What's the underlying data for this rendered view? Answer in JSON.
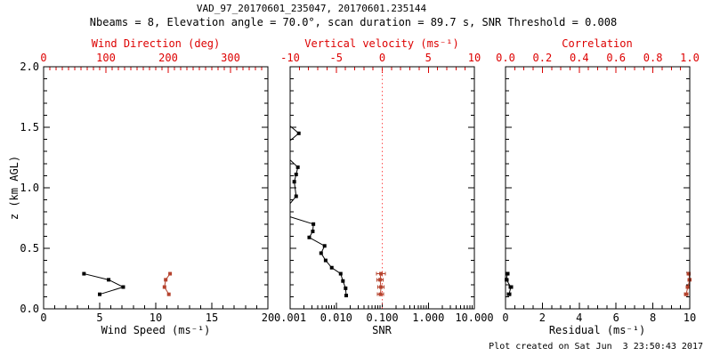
{
  "header": {
    "title": "VAD_97_20170601_235047, 20170601.235144",
    "subtitle": "Nbeams = 8, Elevation angle = 70.0°, scan duration = 89.7 s, SNR Threshold = 0.008"
  },
  "footer": {
    "created": "Plot created on Sat Jun  3 23:50:43 2017"
  },
  "colors": {
    "black": "#000000",
    "axis_red": "#dd0000",
    "data_red": "#b5432e",
    "refline": "#ff5050",
    "background": "#ffffff"
  },
  "chart_data": {
    "type": "line",
    "title": "VAD_97_20170601_235047, 20170601.235144",
    "subtitle": "Nbeams = 8, Elevation angle = 70.0°, scan duration = 89.7 s, SNR Threshold = 0.008",
    "ylabel": "z (km AGL)",
    "grid": false,
    "legend": "none",
    "marker_style": "filled-square",
    "y_axis": {
      "range": [
        0,
        2
      ],
      "major": [
        0,
        0.5,
        1,
        1.5,
        2
      ],
      "labels": [
        "0.0",
        "0.5",
        "1.0",
        "1.5",
        "2.0"
      ],
      "minor_step": 0.1
    },
    "panels": [
      {
        "name": "wind",
        "bottom_axis": {
          "label": "Wind Speed (ms⁻¹)",
          "range": [
            0,
            20
          ],
          "major": [
            0,
            5,
            10,
            15,
            20
          ],
          "labels": [
            "0",
            "5",
            "10",
            "15",
            "20"
          ],
          "minor_step": 1
        },
        "top_axis": {
          "label": "Wind Direction (deg)",
          "range": [
            0,
            360
          ],
          "major": [
            0,
            100,
            200,
            300
          ],
          "labels": [
            "0",
            "100",
            "200",
            "300"
          ],
          "minor_step": 10
        },
        "series": [
          {
            "name": "wind-speed",
            "axis": "bottom",
            "color": "#000000",
            "z": [
              0.12,
              0.18,
              0.24,
              0.29
            ],
            "v": [
              5.0,
              7.1,
              5.8,
              3.6
            ]
          },
          {
            "name": "wind-direction",
            "axis": "top",
            "color": "#b5432e",
            "z": [
              0.12,
              0.18,
              0.24,
              0.29
            ],
            "v": [
              201,
              194,
              196,
              203
            ]
          }
        ]
      },
      {
        "name": "snr",
        "bottom_axis": {
          "label": "SNR",
          "range": [
            0.001,
            10
          ],
          "log": true,
          "major": [
            0.001,
            0.01,
            0.1,
            1,
            10
          ],
          "labels": [
            "0.001",
            "0.010",
            "0.100",
            "1.000",
            "10.000"
          ]
        },
        "top_axis": {
          "label": "Vertical velocity (ms⁻¹)",
          "range": [
            -10,
            10
          ],
          "major": [
            -10,
            -5,
            0,
            5,
            10
          ],
          "labels": [
            "-10",
            "-5",
            "0",
            "5",
            "10"
          ],
          "minor_step": 1
        },
        "ref_line": {
          "axis": "top",
          "value": 0,
          "style": "dotted"
        },
        "series": [
          {
            "name": "snr-profile",
            "axis": "bottom",
            "color": "#000000",
            "z": [
              0.11,
              0.17,
              0.23,
              0.29,
              0.34,
              0.4,
              0.46,
              0.52,
              0.59,
              0.64,
              0.7,
              0.76,
              0.87,
              0.93,
              1.05,
              1.11,
              1.17,
              1.23,
              1.39,
              1.45,
              1.51
            ],
            "v": [
              0.0165,
              0.016,
              0.014,
              0.0125,
              0.008,
              0.0059,
              0.0047,
              0.0056,
              0.0026,
              0.0031,
              0.0032,
              0.0005,
              0.0005,
              0.00135,
              0.00123,
              0.00135,
              0.00147,
              0.0006,
              0.0006,
              0.00154,
              0.0005
            ],
            "m": [
              1,
              1,
              1,
              1,
              1,
              1,
              1,
              1,
              1,
              1,
              1,
              0,
              0,
              1,
              1,
              1,
              1,
              0,
              0,
              1,
              0
            ]
          },
          {
            "name": "vertical-velocity",
            "axis": "top",
            "color": "#b5432e",
            "z": [
              0.12,
              0.18,
              0.24,
              0.29
            ],
            "v": [
              -0.19,
              -0.14,
              -0.24,
              -0.14
            ],
            "xerr": [
              0.35,
              0.35,
              0.35,
              0.5
            ]
          }
        ]
      },
      {
        "name": "residual",
        "bottom_axis": {
          "label": "Residual (ms⁻¹)",
          "range": [
            0,
            10
          ],
          "major": [
            0,
            2,
            4,
            6,
            8,
            10
          ],
          "labels": [
            "0",
            "2",
            "4",
            "6",
            "8",
            "10"
          ],
          "minor_step": 0.5
        },
        "top_axis": {
          "label": "Correlation",
          "range": [
            0,
            1
          ],
          "major": [
            0,
            0.2,
            0.4,
            0.6,
            0.8,
            1.0
          ],
          "labels": [
            "0.0",
            "0.2",
            "0.4",
            "0.6",
            "0.8",
            "1.0"
          ],
          "minor_step": 0.05
        },
        "series": [
          {
            "name": "residual",
            "axis": "bottom",
            "color": "#000000",
            "z": [
              0.12,
              0.18,
              0.24,
              0.29
            ],
            "v": [
              0.19,
              0.29,
              0.05,
              0.1
            ],
            "xerr": [
              0.1,
              0.1,
              0.1,
              0.1
            ]
          },
          {
            "name": "correlation",
            "axis": "top",
            "color": "#b5432e",
            "z": [
              0.12,
              0.18,
              0.24,
              0.29
            ],
            "v": [
              0.98,
              0.99,
              1.0,
              0.995
            ],
            "xerr": [
              0.01,
              0.01,
              0.01,
              0.01
            ]
          }
        ]
      }
    ]
  }
}
